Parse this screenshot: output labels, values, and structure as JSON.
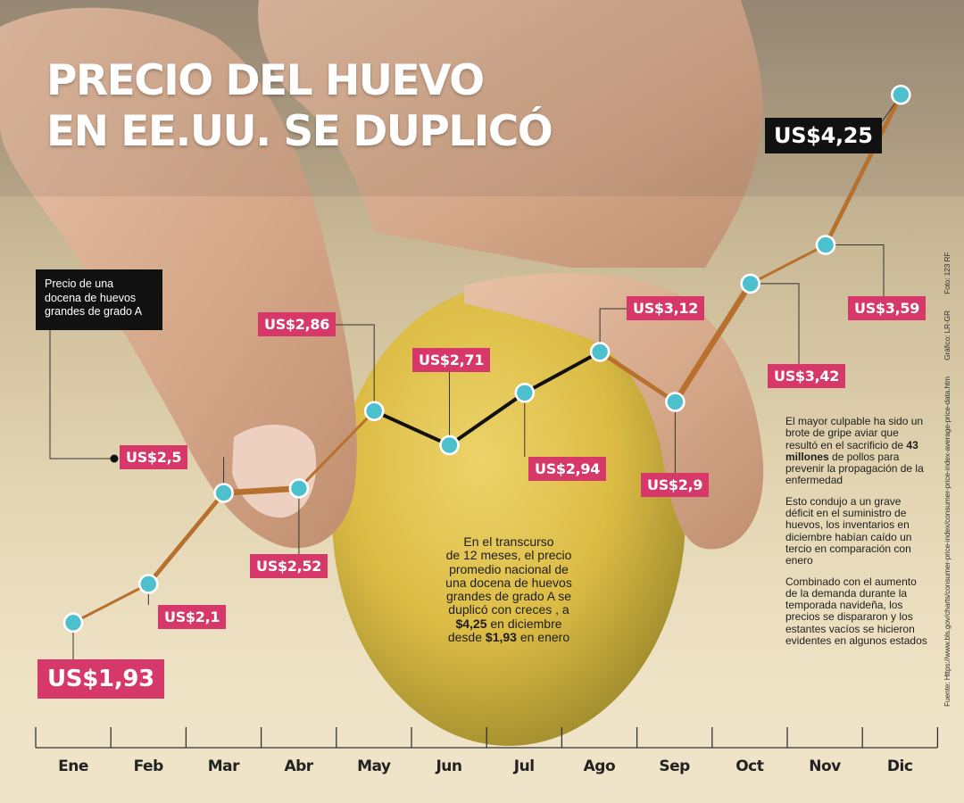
{
  "title": {
    "line1": "PRECIO DEL HUEVO",
    "line2": "EN EE.UU. SE DUPLICÓ"
  },
  "description": {
    "line1": "Precio de una",
    "line2": "docena de huevos",
    "line3": "grandes de grado A"
  },
  "chart_data": {
    "type": "line",
    "title": "PRECIO DEL HUEVO EN EE.UU. SE DUPLICÓ",
    "categories": [
      "Ene",
      "Feb",
      "Mar",
      "Abr",
      "May",
      "Jun",
      "Jul",
      "Ago",
      "Sep",
      "Oct",
      "Nov",
      "Dic"
    ],
    "series": [
      {
        "values": [
          1.93,
          2.1,
          2.5,
          2.52,
          2.86,
          2.71,
          2.94,
          3.12,
          2.9,
          3.42,
          3.59,
          4.25
        ]
      }
    ],
    "data_labels": [
      "US$1,93",
      "US$2,1",
      "US$2,5",
      "US$2,52",
      "US$2,86",
      "US$2,71",
      "US$2,94",
      "US$3,12",
      "US$2,9",
      "US$3,42",
      "US$3,59",
      "US$4,25"
    ],
    "grid": false,
    "line_color": "#b8702f",
    "marker_color": "#4cc0cc",
    "label_color": "#d7386a",
    "highlight_label_color": "#111111"
  },
  "egg_note": {
    "line1": "En el transcurso",
    "line2": "de 12 meses, el precio",
    "line3": "promedio nacional de",
    "line4": "una docena de huevos",
    "line5": "grandes de grado A se",
    "line6": "duplicó con creces , a",
    "line7_value": "$4,25",
    "line7_rest": " en diciembre",
    "line8_pre": "desde ",
    "line8_value": "$1,93",
    "line8_rest": " en enero"
  },
  "side_notes": {
    "p1_pre": "El mayor culpable ha sido un brote de gripe aviar que resultó en el sacrificio de ",
    "p1_bold": "43 millones",
    "p1_post": " de pollos para prevenir la propagación de la enfermedad",
    "p2": "Esto condujo a un grave déficit en el suministro de huevos, los inventarios en diciembre habían caído un tercio en comparación con enero",
    "p3": "Combinado con el aumento de la demanda durante la temporada navideña, los precios se dispararon y los estantes vacíos se hicieron evidentes en algunos estados"
  },
  "credits": {
    "source": "Fuente: Https://www.bls.gov/charts/consumer-price-index/consumer-price-index-average-price-data.htm",
    "graphic": "Gráfico: LR-GR",
    "photo": "Foto: 123 RF"
  },
  "colors": {
    "accent_pink": "#d7386a",
    "marker_teal": "#4cc0cc",
    "trend_orange": "#b8702f",
    "egg_yellow": "#e1c34a"
  }
}
